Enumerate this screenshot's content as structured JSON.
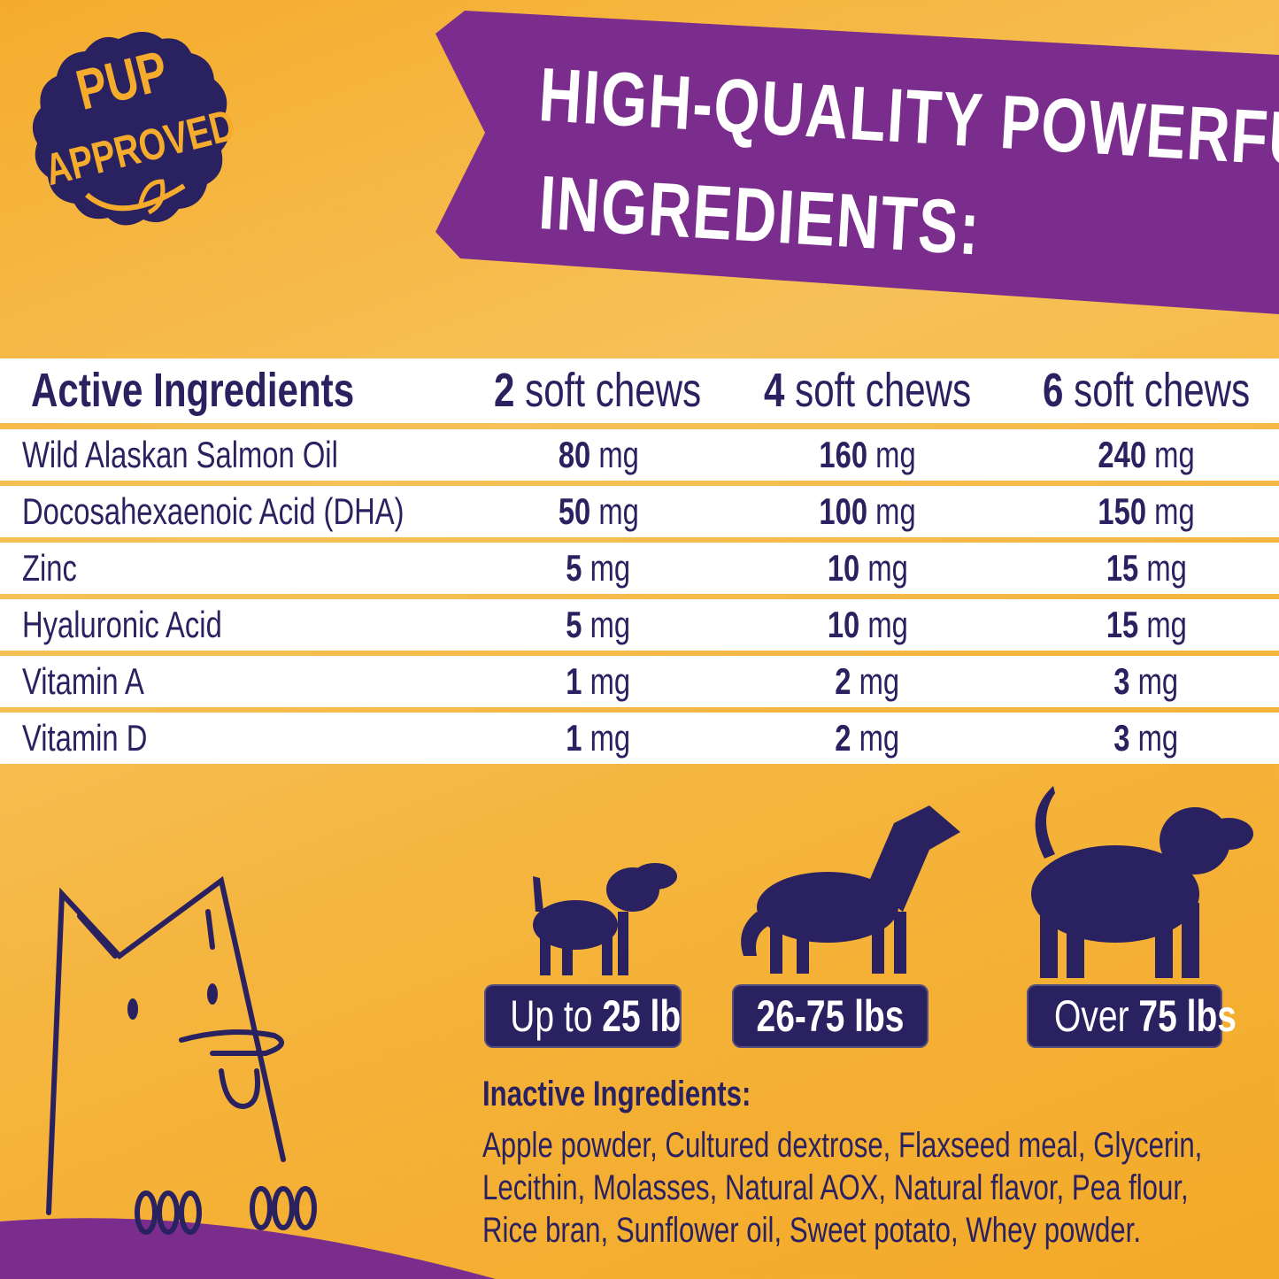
{
  "badge_logo": {
    "line1": "PUP",
    "line2": "APPROVED"
  },
  "banner": {
    "line1": "HIGH-QUALITY POWERFUL",
    "line2": "INGREDIENTS:"
  },
  "table": {
    "headers": [
      {
        "label": "Active Ingredients"
      },
      {
        "count": "2",
        "unit": "soft chews"
      },
      {
        "count": "4",
        "unit": "soft chews"
      },
      {
        "count": "6",
        "unit": "soft chews"
      }
    ],
    "rows": [
      {
        "name": "Wild Alaskan Salmon Oil",
        "v": [
          "80",
          "160",
          "240"
        ],
        "unit": "mg"
      },
      {
        "name": "Docosahexaenoic Acid (DHA)",
        "v": [
          "50",
          "100",
          "150"
        ],
        "unit": "mg"
      },
      {
        "name": "Zinc",
        "v": [
          "5",
          "10",
          "15"
        ],
        "unit": "mg"
      },
      {
        "name": "Hyaluronic Acid",
        "v": [
          "5",
          "10",
          "15"
        ],
        "unit": "mg"
      },
      {
        "name": "Vitamin A",
        "v": [
          "1",
          "2",
          "3"
        ],
        "unit": "mg"
      },
      {
        "name": "Vitamin D",
        "v": [
          "1",
          "2",
          "3"
        ],
        "unit": "mg"
      }
    ]
  },
  "sizes": [
    {
      "pre": "Up to ",
      "bold": "25 lb",
      "icon": "small-dog-icon"
    },
    {
      "pre": "",
      "bold": "26-75 lbs",
      "icon": "medium-dog-icon"
    },
    {
      "pre": "Over ",
      "bold": "75 lbs",
      "icon": "large-dog-icon"
    }
  ],
  "inactive": {
    "title": "Inactive Ingredients:",
    "lines": [
      "Apple powder, Cultured dextrose, Flaxseed meal, Glycerin,",
      "Lecithin, Molasses, Natural AOX, Natural flavor, Pea flour,",
      "Rice bran, Sunflower oil, Sweet potato, Whey powder."
    ]
  },
  "colors": {
    "orange": "#F5AC2C",
    "purple": "#7B2D8E",
    "navy": "#2A2160",
    "white": "#FFFFFF"
  }
}
